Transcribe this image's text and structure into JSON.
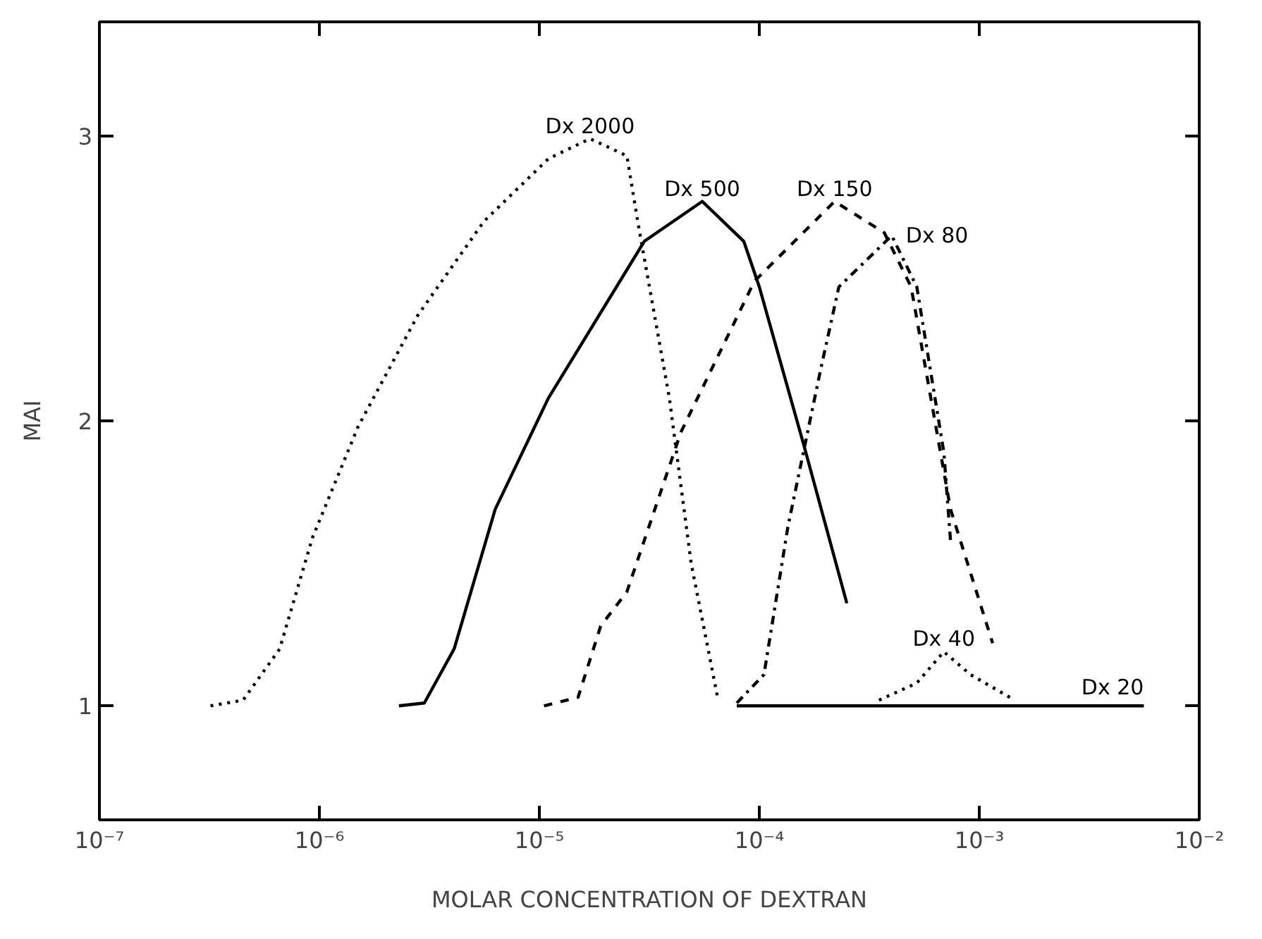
{
  "chart_data": {
    "type": "line",
    "xlabel": "MOLAR CONCENTRATION OF DEXTRAN",
    "ylabel": "MAI",
    "log": "x",
    "grid": false,
    "marker": "none",
    "xlim": [
      1e-07,
      0.01
    ],
    "ylim": [
      0.6,
      3.4
    ],
    "xticks": [
      {
        "value": 1e-07,
        "label": "10⁻⁷"
      },
      {
        "value": 1e-06,
        "label": "10⁻⁶"
      },
      {
        "value": 1e-05,
        "label": "10⁻⁵"
      },
      {
        "value": 0.0001,
        "label": "10⁻⁴"
      },
      {
        "value": 0.001,
        "label": "10⁻³"
      },
      {
        "value": 0.01,
        "label": "10⁻²"
      }
    ],
    "yticks": [
      1,
      2,
      3
    ],
    "series": [
      {
        "name": "Dx 2000",
        "color": "#000000",
        "line_style": "dotted",
        "x": [
          3.2e-07,
          4.5e-07,
          6.6e-07,
          9.3e-07,
          1.5e-06,
          2.8e-06,
          5.6e-06,
          1.1e-05,
          1.7e-05,
          2.5e-05,
          2.8e-05,
          3.9e-05,
          4.9e-05,
          6.5e-05
        ],
        "values": [
          1.0,
          1.02,
          1.2,
          1.59,
          1.98,
          2.37,
          2.7,
          2.92,
          2.99,
          2.93,
          2.7,
          2.08,
          1.5,
          1.02
        ]
      },
      {
        "name": "Dx 500",
        "color": "#000000",
        "line_style": "solid",
        "x": [
          2.3e-06,
          3e-06,
          4.1e-06,
          6.3e-06,
          1.1e-05,
          2.5e-05,
          3e-05,
          5.5e-05,
          8.5e-05,
          0.0001,
          0.00016,
          0.00025
        ],
        "values": [
          1.0,
          1.01,
          1.2,
          1.69,
          2.08,
          2.53,
          2.63,
          2.77,
          2.63,
          2.47,
          1.91,
          1.36
        ]
      },
      {
        "name": "Dx 150",
        "color": "#000000",
        "line_style": "dashed",
        "x": [
          1.05e-05,
          1.5e-05,
          1.9e-05,
          2.5e-05,
          4.4e-05,
          9.5e-05,
          0.00022,
          0.00037,
          0.00049,
          0.00074,
          0.00115
        ],
        "values": [
          1.0,
          1.03,
          1.28,
          1.4,
          1.96,
          2.49,
          2.77,
          2.66,
          2.47,
          1.69,
          1.22
        ]
      },
      {
        "name": "Dx 80",
        "color": "#000000",
        "line_style": "dashdot",
        "x": [
          7.9e-05,
          0.000105,
          0.000135,
          0.00019,
          0.00023,
          0.0004,
          0.00052,
          0.00069,
          0.00074
        ],
        "values": [
          1.01,
          1.11,
          1.63,
          2.18,
          2.47,
          2.65,
          2.47,
          1.89,
          1.58
        ]
      },
      {
        "name": "Dx 40",
        "color": "#000000",
        "line_style": "dotted",
        "x": [
          0.00035,
          0.00052,
          0.00069,
          0.00091,
          0.00145
        ],
        "values": [
          1.02,
          1.08,
          1.19,
          1.11,
          1.02
        ]
      },
      {
        "name": "Dx 20",
        "color": "#000000",
        "line_style": "solid",
        "x": [
          7.9e-05,
          0.0056
        ],
        "values": [
          1.0,
          1.0
        ]
      }
    ]
  }
}
